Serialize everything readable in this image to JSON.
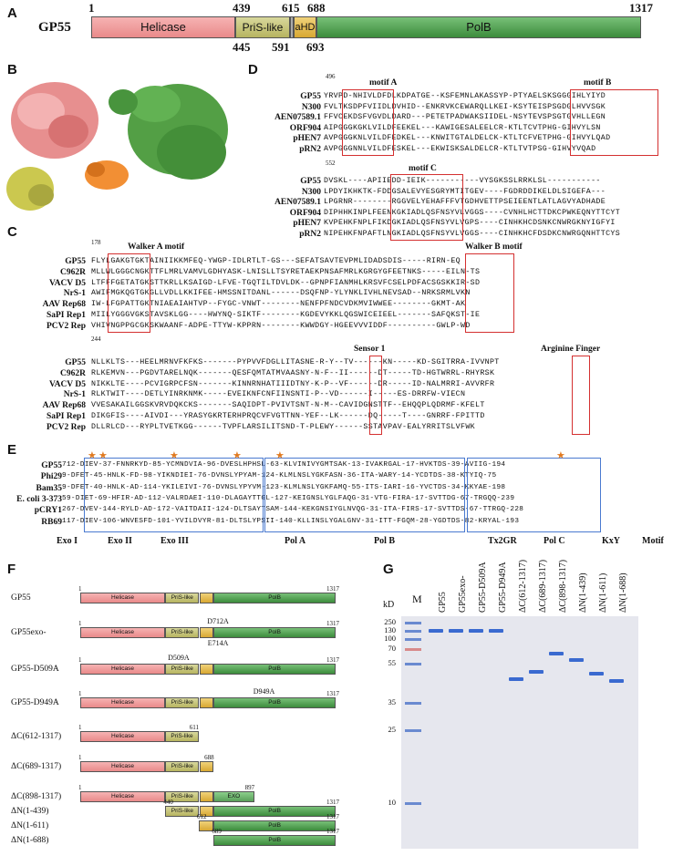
{
  "panelA": {
    "label": "A",
    "protein": "GP55",
    "domains": {
      "helicase": "Helicase",
      "pris": "PriS-like",
      "ahd": "aHD",
      "polb": "PolB"
    },
    "top_numbers": [
      "1",
      "439",
      "615",
      "688",
      "1317"
    ],
    "bottom_numbers": [
      "445",
      "591",
      "693"
    ]
  },
  "panelB": {
    "label": "B"
  },
  "panelD": {
    "label": "D",
    "start1": "496",
    "start2": "552",
    "motifA": "motif A",
    "motifB": "motif B",
    "motifC": "motif C",
    "names": [
      "GP55",
      "N300",
      "AEN07589.1",
      "ORF904",
      "pHEN7",
      "pRN2"
    ],
    "block1": [
      "YRVPD-NHIVLDFDLKDPATGE--KSFEMNLAKASSYP-PTYAELSKSGGGIHLYIYD",
      "FVLTKSDPFVIIDLDVHID--ENKRVKCEWARQLLKEI-KSYTEISPSGDGLHVVSGK",
      "FFVCEKDSFVGVDLDARD---PETETPADWAKSIIDEL-NSYTEVSPSGTGVHLLEGN",
      "AIPGGGKGKLVILDFEEKEL---KAWIGESALEELCR-KTLTCVTPHG-GIHVYLSN",
      "AVPGGGKNLVILDFEDKEL---KNWITGTALDELCK-KTLTCFVETPHG-GIHVYLQAD",
      "AVPGGGNNLVILDFESKEL---EKWISKSALDELCR-KTLTVTPSG-GIHVYVQAD"
    ],
    "block2": [
      "DVSKL----APIIEDD-IEIK-----------VYSGKSSLRRKLSL-----------",
      "LPDYIKHKTK-FDDGSALEVYESGRYMTITGEV----FGDRDDIKELDLSIGEFA---",
      "LPGRNR--------RGGVELYEHAFFFVTGDHVETTPSEIEENTLATLAGVYADHADE",
      "DIPHHKINPLFEENKGKIADLQSFNSYVLVGGS----CVNHLHCTTDKCPWKEQNYTTCYT",
      "KVPEHKFNPLFIKDGKIADLQSFNSYVLVGPS----CINHKHCDSNKCNWRGKNYIGFYI",
      "NIPEHKFNPAFTLNGKIADLQSFNSYVLVGGS----CINHKHCFDSDKCNWRGQNHTTCYS"
    ]
  },
  "panelC": {
    "label": "C",
    "start1": "178",
    "start2": "244",
    "walkerA": "Walker A motif",
    "walkerB": "Walker B motif",
    "sensor": "Sensor 1",
    "arginine": "Arginine Finger",
    "names": [
      "GP55",
      "C962R",
      "VACV D5",
      "NrS-1",
      "AAV Rep68",
      "SaPI Rep1",
      "PCV2 Rep"
    ],
    "block1": [
      "FLYLGAKGTGKTAINIIKKMFEQ-YWGP-IDLRTLT-GS---SEFATSAVTEVPMLIDADSDIS-----RIRN-EQ",
      "MLLWLGGGCNGKTTFLMRLVAMVLGDHYASK-LNISLLTSYRETAEKPNSAFMRLKGRGYGFEETNKS-----EILN-TS",
      "LTFFFGETATGKSTTKRLLKSAIGD-LFVE-TGQTILTDVLDK--GPNPFIANMHLKRSVFCSELPDFACSGSKKIR-SD",
      "AWIFMGKQGTGKGLLVDLLKKIFEE-HMSSNITDANL------DSQFNP-YLYNKLIVHLNEVSAD--NRKSRMLVKN",
      "IW-LFGPATTGKTNIAEAIAHTVP--FYGC-VNWT--------NENFPFNDCVDKMVIWWEE--------GKMT-AK",
      "MIILYGGGVGKSTAVSKLGG----HWYNQ-SIKTF--------KGDEVYKKLQGSWICEIEEL-------SAFQKST-IE",
      "VHIVNGPPGCGKSKWAANF-ADPE-TTYW-KPPRN--------KWWDGY-HGEEVVVIDDF----------GWLP-WD"
    ],
    "block2": [
      "NLLKLTS---HEELMRNVFKFKS-------PYPVVFDGLLITASNE-R-Y--TV------KN-----KD-SGITRRA-IVVNPT",
      "RLKEMVN---PGDVTARELNQK-------QESFQMTATMVAASNY-N-F--II------DT-----TD-HGTWRRL-RHYRSK",
      "NIKKLTE----PCVIGRPCFSN-------KINNRNHATIIIDTNY-K-P--VF------DR-----ID-NALMRRI-AVVRFR",
      "RLKTWIT----DETLYINRKNMK-----EVEIKNFCNFIINSNTI-P--VD------I-----ES-DRRFW-VIECN",
      "VVESAKAILGGSKVRVDQKCKS-------SAQIDPT-PVIVTSNT-N-M--CAVIDGNSTTF--EHQQPLQDRMF-KFELT",
      "DIKGFIS----AIVDI---YRASYGKRTERHPRQCVFVGTTNN-YEF--LK------DQ-----T----GNRRF-FPITTD",
      "DLLRLCD---RYPLTVETKGG------TVPFLARSILITSND-T-PLEWY------SSTAVPAV-EALYRRITSLVFWK"
    ]
  },
  "panelE": {
    "label": "E",
    "names": [
      "GP55",
      "Phi29",
      "Bam35",
      "E. coli 3-373",
      "pCRY1",
      "RB69"
    ],
    "rows": [
      "712-DIEV-37-FNNRKYD-85-YCMNDVIA-96-DVESLHPHSL-63-KLVINIVYGMTSAK-13-IVAKRGAL-17-HVKTDS-39-AVIIG-194",
      "9-DFET-45-HNLK-FD-98-YIKNDIEI-76-DVNSLYPYAM-124-KLMLNSLYGKFASN-36-ITA-WARY-14-YCDTDS-38-KTYIQ-75",
      "9-DFET-40-HNLK-AD-114-YKILEIVI-76-DVNSLYPYVM-123-KLMLNSLYGKFAMQ-55-ITS-IARI-16-YVCTDS-34-KKYAE-198",
      "59-DIET-69-HFIR-AD-112-VALRDAEI-110-DLAGAYTTGL-127-KEIGNSLYGLFAQG-31-VTG-FIRA-17-SVTTDG-67-TRGQQ-239",
      "267-DVEV-144-RYLD-AD-172-VAITDAII-124-DLTSAYTSAM-144-KEKGNSIYGLNVQG-31-ITA-FIRS-17-SVTTDS-67-TTRGQ-228",
      "117-DIEV-106-WNVESFD-101-YVILDVYR-81-DLTSLYPSII-140-KLLINSLYGALGNV-31-ITT-FGQM-28-YGDTDS-82-KRYAL-193"
    ],
    "motifs": [
      "Exo I",
      "Exo II",
      "Exo III",
      "Pol A",
      "Pol B",
      "Tx2GR",
      "Pol C",
      "KxY",
      "Motif"
    ]
  },
  "panelF": {
    "label": "F",
    "constructs": [
      {
        "name": "GP55",
        "start": "1",
        "end": "1317"
      },
      {
        "name": "GP55exo-",
        "start": "1",
        "end": "1317",
        "mut_top": "D712A",
        "mut_bottom": "E714A"
      },
      {
        "name": "GP55-D509A",
        "start": "1",
        "end": "1317",
        "mut_top": "D509A"
      },
      {
        "name": "GP55-D949A",
        "start": "1",
        "end": "1317",
        "mut_top": "D949A"
      },
      {
        "name": "ΔC(612-1317)",
        "start": "1",
        "end": "611"
      },
      {
        "name": "ΔC(689-1317)",
        "start": "1",
        "end": "688"
      },
      {
        "name": "ΔC(898-1317)",
        "start": "1",
        "end": "897"
      },
      {
        "name": "ΔN(1-439)",
        "start": "440",
        "end": "1317"
      },
      {
        "name": "ΔN(1-611)",
        "start": "612",
        "end": "1317"
      },
      {
        "name": "ΔN(1-688)",
        "start": "689",
        "end": "1317"
      }
    ],
    "dom_labels": {
      "helicase": "Helicase",
      "pris": "PriS-like",
      "ahd": "aHD",
      "polb": "PolB",
      "exo": "EXO"
    }
  },
  "panelG": {
    "label": "G",
    "kd": "kD",
    "marker": "M",
    "lanes": [
      "GP55",
      "GP55exo-",
      "GP55-D509A",
      "GP55-D949A",
      "ΔC(612-1317)",
      "ΔC(689-1317)",
      "ΔC(898-1317)",
      "ΔN(1-439)",
      "ΔN(1-611)",
      "ΔN(1-688)"
    ],
    "mw": [
      "250",
      "130",
      "100",
      "70",
      "55",
      "35",
      "25",
      "10"
    ]
  }
}
